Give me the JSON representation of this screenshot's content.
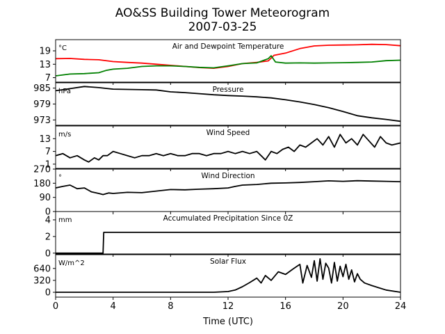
{
  "figure": {
    "title_line1": "AO&SS Building Tower Meteorogram",
    "title_line2": "2007-03-25",
    "xlabel": "Time (UTC)"
  },
  "chart_data": [
    {
      "type": "line",
      "title": "Air and Dewpoint Temperature",
      "unit_label": "°C",
      "xlim": [
        0,
        24
      ],
      "ylim": [
        5,
        24
      ],
      "yticks": [
        7,
        13,
        19
      ],
      "grid": false,
      "series": [
        {
          "color": "#ff0000",
          "x": [
            0,
            1,
            2,
            3,
            4,
            5,
            6,
            7,
            8,
            9,
            10,
            11,
            12,
            13,
            14,
            14.8,
            15.2,
            16,
            17,
            18,
            19,
            20,
            21,
            22,
            23,
            24
          ],
          "y": [
            15.5,
            15.6,
            15.2,
            15.0,
            14.2,
            13.8,
            13.5,
            13.0,
            12.5,
            12.0,
            11.5,
            11.2,
            12.0,
            13.3,
            13.8,
            14.5,
            17.0,
            18.0,
            20.0,
            21.2,
            21.5,
            21.6,
            21.7,
            21.9,
            21.8,
            21.3
          ]
        },
        {
          "color": "#008000",
          "x": [
            0,
            1,
            2,
            3,
            3.5,
            4,
            5,
            6,
            7,
            8,
            9,
            10,
            11,
            12,
            13,
            14,
            14.8,
            15,
            15.3,
            16,
            17,
            18,
            19,
            20,
            21,
            22,
            23,
            24
          ],
          "y": [
            7.8,
            8.6,
            8.8,
            9.2,
            10.2,
            10.8,
            11.2,
            12.0,
            12.3,
            12.3,
            12.0,
            11.6,
            11.4,
            12.3,
            13.3,
            13.6,
            15.5,
            16.8,
            14.0,
            13.5,
            13.6,
            13.5,
            13.6,
            13.7,
            13.8,
            14.0,
            14.6,
            14.8
          ]
        }
      ]
    },
    {
      "type": "line",
      "title": "Pressure",
      "unit_label": "hPa",
      "xlim": [
        0,
        24
      ],
      "ylim": [
        971,
        987
      ],
      "yticks": [
        973,
        979,
        985
      ],
      "grid": false,
      "series": [
        {
          "color": "#000000",
          "x": [
            0,
            1,
            2,
            3,
            4,
            5,
            6,
            7,
            8,
            9,
            10,
            11,
            12,
            13,
            14,
            15,
            16,
            17,
            18,
            19,
            20,
            21,
            22,
            23,
            24
          ],
          "y": [
            984.0,
            984.8,
            985.6,
            985.2,
            984.6,
            984.5,
            984.4,
            984.3,
            983.6,
            983.3,
            982.9,
            982.5,
            982.2,
            982.0,
            981.7,
            981.3,
            980.6,
            979.8,
            978.8,
            977.6,
            976.2,
            974.6,
            973.8,
            973.2,
            972.5
          ]
        }
      ]
    },
    {
      "type": "line",
      "title": "Wind Speed",
      "unit_label": "m/s",
      "xlim": [
        0,
        24
      ],
      "ylim": [
        -1,
        19
      ],
      "yticks": [
        1,
        7,
        13
      ],
      "grid": false,
      "series": [
        {
          "color": "#000000",
          "x": [
            0,
            0.5,
            1,
            1.5,
            2,
            2.3,
            2.7,
            3,
            3.3,
            3.6,
            4,
            4.5,
            5,
            5.5,
            6,
            6.5,
            7,
            7.5,
            8,
            8.5,
            9,
            9.5,
            10,
            10.5,
            11,
            11.5,
            12,
            12.5,
            13,
            13.5,
            14,
            14.3,
            14.6,
            15,
            15.4,
            15.8,
            16.2,
            16.6,
            17,
            17.4,
            17.8,
            18.2,
            18.6,
            19,
            19.4,
            19.8,
            20.2,
            20.6,
            21,
            21.4,
            21.8,
            22.2,
            22.6,
            23,
            23.4,
            24
          ],
          "y": [
            5,
            6,
            4,
            5,
            3,
            2,
            4,
            3,
            5,
            5,
            7,
            6,
            5,
            4,
            5,
            5,
            6,
            5,
            6,
            5,
            5,
            6,
            6,
            5,
            6,
            6,
            7,
            6,
            7,
            6,
            7,
            5,
            3,
            7,
            6,
            8,
            9,
            7,
            10,
            9,
            11,
            13,
            10,
            14,
            9,
            15,
            11,
            13,
            10,
            15,
            12,
            9,
            14,
            11,
            10,
            11
          ]
        }
      ]
    },
    {
      "type": "line",
      "title": "Wind Direction",
      "unit_label": "°",
      "xlim": [
        0,
        24
      ],
      "ylim": [
        0,
        270
      ],
      "yticks": [
        0,
        90,
        180,
        270
      ],
      "grid": false,
      "series": [
        {
          "color": "#000000",
          "x": [
            0,
            0.5,
            1,
            1.5,
            2,
            2.5,
            3,
            3.3,
            3.7,
            4,
            5,
            6,
            7,
            8,
            9,
            10,
            11,
            12,
            12.5,
            13,
            14,
            15,
            16,
            17,
            18,
            19,
            20,
            21,
            22,
            23,
            24
          ],
          "y": [
            150,
            160,
            168,
            145,
            150,
            125,
            115,
            108,
            118,
            115,
            122,
            120,
            130,
            140,
            138,
            142,
            145,
            150,
            160,
            168,
            172,
            180,
            182,
            185,
            190,
            195,
            192,
            196,
            194,
            192,
            190
          ]
        }
      ]
    },
    {
      "type": "line",
      "title": "Accumulated Precipitation Since 0Z",
      "unit_label": "mm",
      "xlim": [
        0,
        24
      ],
      "ylim": [
        -0.1,
        5
      ],
      "yticks": [
        0,
        2,
        4
      ],
      "grid": false,
      "series": [
        {
          "color": "#000000",
          "x": [
            0,
            3.3,
            3.35,
            24
          ],
          "y": [
            0,
            0,
            2.5,
            2.5
          ]
        }
      ]
    },
    {
      "type": "line",
      "title": "Solar Flux",
      "unit_label": "W/m^2",
      "xlim": [
        0,
        24
      ],
      "ylim": [
        -130,
        1010
      ],
      "yticks": [
        0,
        320,
        640
      ],
      "grid": false,
      "series": [
        {
          "color": "#000000",
          "x": [
            0,
            3,
            6,
            9,
            11,
            12,
            12.5,
            13,
            13.5,
            14,
            14.3,
            14.6,
            15,
            15.5,
            16,
            16.5,
            16.8,
            17,
            17.2,
            17.5,
            17.8,
            18,
            18.2,
            18.4,
            18.6,
            18.8,
            19,
            19.2,
            19.4,
            19.6,
            19.8,
            20,
            20.2,
            20.4,
            20.6,
            20.8,
            21,
            21.2,
            21.5,
            22,
            22.5,
            23,
            24
          ],
          "y": [
            0,
            0,
            0,
            0,
            0,
            20,
            60,
            150,
            260,
            380,
            250,
            450,
            320,
            550,
            480,
            620,
            700,
            750,
            250,
            720,
            400,
            850,
            300,
            900,
            350,
            780,
            650,
            250,
            800,
            300,
            700,
            420,
            750,
            350,
            600,
            280,
            500,
            350,
            250,
            180,
            120,
            60,
            0
          ]
        }
      ]
    }
  ],
  "x_axis": {
    "ticks": [
      0,
      4,
      8,
      12,
      16,
      20,
      24
    ]
  }
}
